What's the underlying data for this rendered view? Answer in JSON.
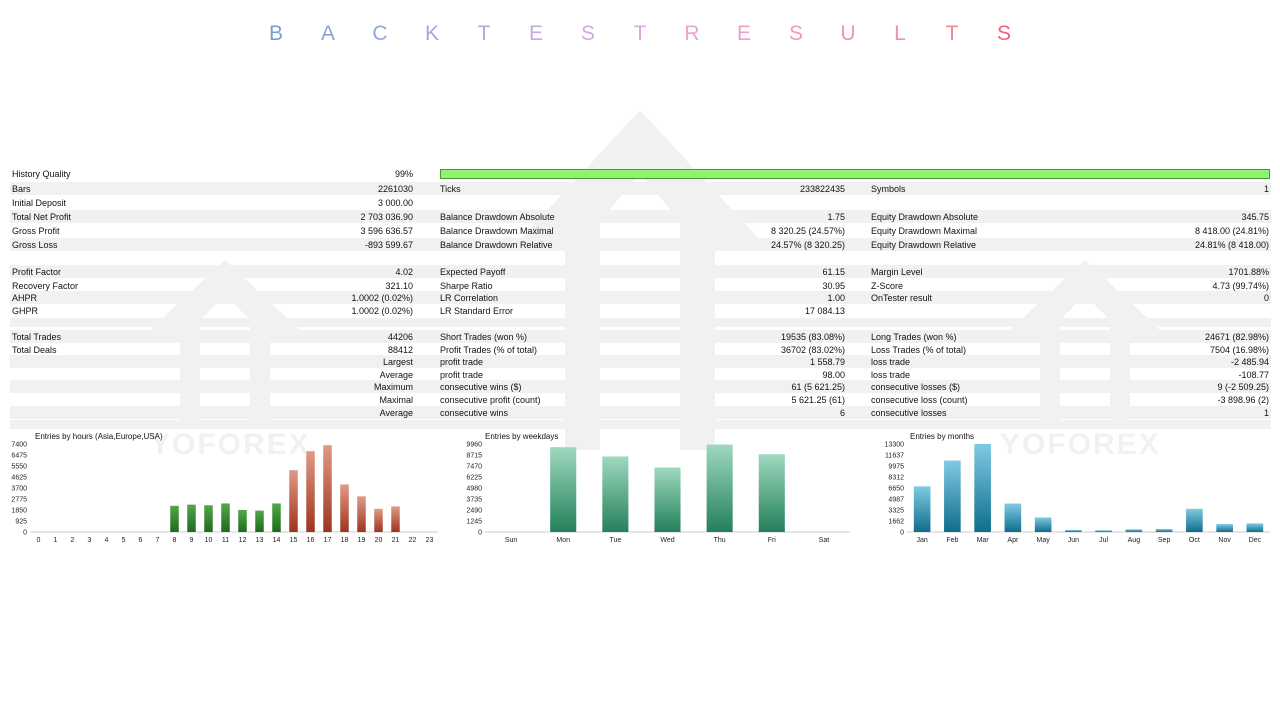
{
  "title": {
    "letters": [
      "B",
      "A",
      "C",
      "K",
      "T",
      "E",
      "S",
      "T",
      "R",
      "E",
      "S",
      "U",
      "L",
      "T",
      "S"
    ]
  },
  "title_colors": [
    "#7b9fd4",
    "#8aa2d8",
    "#95a6db",
    "#a4a8de",
    "#b3aadf",
    "#c2abdf",
    "#d0abdd",
    "#dcaad9",
    "#e6a6d2",
    "#eca1c9",
    "#ef9bbd",
    "#f095af",
    "#f18ea0",
    "#f18890",
    "#f0617a"
  ],
  "rows": [
    {
      "c": [
        [
          "History Quality",
          "99%"
        ]
      ],
      "hq": true
    },
    {
      "c": [
        [
          "Bars",
          "2261030"
        ],
        [
          "Ticks",
          "233822435"
        ],
        [
          "Symbols",
          "1"
        ]
      ]
    },
    {
      "c": [
        [
          "Initial Deposit",
          "3 000.00"
        ]
      ]
    },
    {
      "c": [
        [
          "Total Net Profit",
          "2 703 036.90"
        ],
        [
          "Balance Drawdown Absolute",
          "1.75"
        ],
        [
          "Equity Drawdown Absolute",
          "345.75"
        ]
      ]
    },
    {
      "c": [
        [
          "Gross Profit",
          "3 596 636.57"
        ],
        [
          "Balance Drawdown Maximal",
          "8 320.25 (24.57%)"
        ],
        [
          "Equity Drawdown Maximal",
          "8 418.00 (24.81%)"
        ]
      ]
    },
    {
      "c": [
        [
          "Gross Loss",
          "-893 599.67"
        ],
        [
          "Balance Drawdown Relative",
          "24.57% (8 320.25)"
        ],
        [
          "Equity Drawdown Relative",
          "24.81% (8 418.00)"
        ]
      ]
    },
    {
      "c": [
        [
          "Profit Factor",
          "4.02"
        ],
        [
          "Expected Payoff",
          "61.15"
        ],
        [
          "Margin Level",
          "1701.88%"
        ]
      ]
    },
    {
      "c": [
        [
          "Recovery Factor",
          "321.10"
        ],
        [
          "Sharpe Ratio",
          "30.95"
        ],
        [
          "Z-Score",
          "4.73 (99.74%)"
        ]
      ]
    },
    {
      "c": [
        [
          "AHPR",
          "1.0002 (0.02%)"
        ],
        [
          "LR Correlation",
          "1.00"
        ],
        [
          "OnTester result",
          "0"
        ]
      ]
    },
    {
      "c": [
        [
          "GHPR",
          "1.0002 (0.02%)"
        ],
        [
          "LR Standard Error",
          "17 084.13"
        ]
      ]
    },
    {
      "c": [
        [
          "Total Trades",
          "44206"
        ],
        [
          "Short Trades (won %)",
          "19535 (83.08%)"
        ],
        [
          "Long Trades (won %)",
          "24671 (82.98%)"
        ]
      ]
    },
    {
      "c": [
        [
          "Total Deals",
          "88412"
        ],
        [
          "Profit Trades (% of total)",
          "36702 (83.02%)"
        ],
        [
          "Loss Trades (% of total)",
          "7504 (16.98%)"
        ]
      ]
    },
    {
      "c": [
        [
          "",
          "Largest"
        ],
        [
          "profit trade",
          "1 558.79"
        ],
        [
          "loss trade",
          "-2 485.94"
        ]
      ]
    },
    {
      "c": [
        [
          "",
          "Average"
        ],
        [
          "profit trade",
          "98.00"
        ],
        [
          "loss trade",
          "-108.77"
        ]
      ]
    },
    {
      "c": [
        [
          "",
          "Maximum"
        ],
        [
          "consecutive wins ($)",
          "61 (5 621.25)"
        ],
        [
          "consecutive losses ($)",
          "9 (-2 509.25)"
        ]
      ]
    },
    {
      "c": [
        [
          "",
          "Maximal"
        ],
        [
          "consecutive profit (count)",
          "5 621.25 (61)"
        ],
        [
          "consecutive loss (count)",
          "-3 898.96 (2)"
        ]
      ]
    },
    {
      "c": [
        [
          "",
          "Average"
        ],
        [
          "consecutive wins",
          "6"
        ],
        [
          "consecutive losses",
          "1"
        ]
      ]
    }
  ],
  "watermark": "YOFOREX",
  "chart_data": [
    {
      "type": "bar",
      "title": "Entries by hours (Asia,Europe,USA)",
      "categories": [
        "0",
        "1",
        "2",
        "3",
        "4",
        "5",
        "6",
        "7",
        "8",
        "9",
        "10",
        "11",
        "12",
        "13",
        "14",
        "15",
        "16",
        "17",
        "18",
        "19",
        "20",
        "21",
        "22",
        "23"
      ],
      "values": [
        0,
        0,
        0,
        0,
        0,
        0,
        0,
        0,
        2200,
        2300,
        2250,
        2400,
        1850,
        1800,
        2400,
        5200,
        6800,
        7300,
        4000,
        3000,
        1950,
        2150,
        0,
        0
      ],
      "yticks": [
        "7400",
        "6475",
        "5550",
        "4625",
        "3700",
        "2775",
        "1850",
        "925",
        "0"
      ],
      "ylim": [
        0,
        7400
      ],
      "colors": {
        "green": "#2f7d2a",
        "red": "#b5482c"
      }
    },
    {
      "type": "bar",
      "title": "Entries by weekdays",
      "categories": [
        "Sun",
        "Mon",
        "Tue",
        "Wed",
        "Thu",
        "Fri",
        "Sat"
      ],
      "values": [
        0,
        9600,
        8550,
        7300,
        9900,
        8800,
        0
      ],
      "yticks": [
        "9960",
        "8715",
        "7470",
        "6225",
        "4980",
        "3735",
        "2490",
        "1245",
        "0"
      ],
      "ylim": [
        0,
        9960
      ],
      "colors": {
        "bar": "#2e8b5f"
      }
    },
    {
      "type": "bar",
      "title": "Entries by months",
      "categories": [
        "Jan",
        "Feb",
        "Mar",
        "Apr",
        "May",
        "Jun",
        "Jul",
        "Aug",
        "Sep",
        "Oct",
        "Nov",
        "Dec"
      ],
      "values": [
        6900,
        10800,
        13300,
        4300,
        2200,
        300,
        250,
        400,
        450,
        3500,
        1200,
        1300
      ],
      "yticks": [
        "13300",
        "11637",
        "9975",
        "8312",
        "6650",
        "4987",
        "3325",
        "1662",
        "0"
      ],
      "ylim": [
        0,
        13300
      ],
      "colors": {
        "bar": "#1b7f9e"
      }
    }
  ]
}
